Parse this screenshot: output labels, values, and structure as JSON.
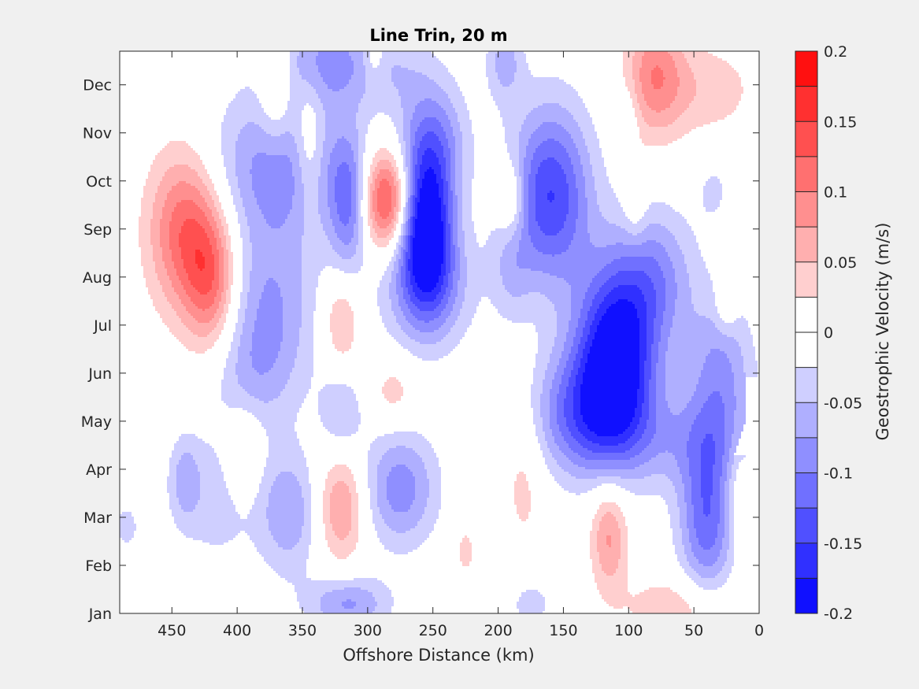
{
  "chart_data": {
    "type": "heatmap",
    "title": "Line Trin, 20 m",
    "xlabel": "Offshore Distance (km)",
    "ylabel": "",
    "xlim": [
      490,
      0
    ],
    "x_reversed": true,
    "xticks": [
      450,
      400,
      350,
      300,
      250,
      200,
      150,
      100,
      50,
      0
    ],
    "ylim": [
      1,
      12.7
    ],
    "yticks": [
      1,
      2,
      3,
      4,
      5,
      6,
      7,
      8,
      9,
      10,
      11,
      12
    ],
    "yticklabels": [
      "Jan",
      "Feb",
      "Mar",
      "Apr",
      "May",
      "Jun",
      "Jul",
      "Aug",
      "Sep",
      "Oct",
      "Nov",
      "Dec"
    ],
    "colorbar": {
      "label": "Geostrophic Velocity (m/s)",
      "min": -0.2,
      "max": 0.2,
      "levels": [
        -0.2,
        -0.175,
        -0.15,
        -0.125,
        -0.1,
        -0.075,
        -0.05,
        -0.025,
        0,
        0.025,
        0.05,
        0.075,
        0.1,
        0.125,
        0.15,
        0.175,
        0.2
      ],
      "ticks": [
        0.2,
        0.15,
        0.1,
        0.05,
        0,
        -0.05,
        -0.1,
        -0.15,
        -0.2
      ],
      "ticklabels": [
        "0.2",
        "0.15",
        "0.1",
        "0.05",
        "0",
        "-0.05",
        "-0.1",
        "-0.15",
        "-0.2"
      ],
      "colormap": "blue-white-red",
      "negative_color": "#0000ff",
      "positive_color": "#ff0000",
      "zero_color": "#ffffff"
    },
    "grid": false,
    "features": [
      {
        "x": 255,
        "y": 9.0,
        "sx": 14,
        "sy": 1.1,
        "v": -0.2
      },
      {
        "x": 250,
        "y": 10.8,
        "sx": 18,
        "sy": 0.9,
        "v": -0.09
      },
      {
        "x": 255,
        "y": 7.8,
        "sx": 25,
        "sy": 0.9,
        "v": -0.08
      },
      {
        "x": 285,
        "y": 9.6,
        "sx": 13,
        "sy": 0.75,
        "v": 0.16
      },
      {
        "x": 315,
        "y": 9.5,
        "sx": 10,
        "sy": 1.0,
        "v": -0.09
      },
      {
        "x": 330,
        "y": 12.5,
        "sx": 28,
        "sy": 0.7,
        "v": -0.08
      },
      {
        "x": 365,
        "y": 10.3,
        "sx": 40,
        "sy": 1.1,
        "v": -0.09
      },
      {
        "x": 375,
        "y": 7.3,
        "sx": 25,
        "sy": 1.3,
        "v": -0.075
      },
      {
        "x": 390,
        "y": 5.9,
        "sx": 22,
        "sy": 0.8,
        "v": -0.035
      },
      {
        "x": 440,
        "y": 9.0,
        "sx": 20,
        "sy": 1.2,
        "v": 0.12
      },
      {
        "x": 420,
        "y": 7.9,
        "sx": 14,
        "sy": 1.0,
        "v": 0.1
      },
      {
        "x": 345,
        "y": 10.8,
        "sx": 8,
        "sy": 1.0,
        "v": 0.06
      },
      {
        "x": 370,
        "y": 12.0,
        "sx": 9,
        "sy": 0.9,
        "v": 0.06
      },
      {
        "x": 160,
        "y": 9.7,
        "sx": 22,
        "sy": 1.3,
        "v": -0.15
      },
      {
        "x": 195,
        "y": 12.5,
        "sx": 10,
        "sy": 0.6,
        "v": -0.06
      },
      {
        "x": 190,
        "y": 9.6,
        "sx": 8,
        "sy": 0.6,
        "v": 0.07
      },
      {
        "x": 190,
        "y": 8.2,
        "sx": 11,
        "sy": 0.8,
        "v": -0.04
      },
      {
        "x": 110,
        "y": 6.4,
        "sx": 22,
        "sy": 1.3,
        "v": -0.2
      },
      {
        "x": 135,
        "y": 5.2,
        "sx": 30,
        "sy": 0.9,
        "v": -0.1
      },
      {
        "x": 80,
        "y": 8.0,
        "sx": 22,
        "sy": 1.0,
        "v": -0.08
      },
      {
        "x": 30,
        "y": 6.0,
        "sx": 18,
        "sy": 1.1,
        "v": -0.08
      },
      {
        "x": 60,
        "y": 4.6,
        "sx": 55,
        "sy": 0.7,
        "v": -0.05
      },
      {
        "x": 40,
        "y": 3.0,
        "sx": 15,
        "sy": 1.2,
        "v": -0.12
      },
      {
        "x": 80,
        "y": 12.2,
        "sx": 16,
        "sy": 0.9,
        "v": 0.09
      },
      {
        "x": 40,
        "y": 11.9,
        "sx": 28,
        "sy": 0.7,
        "v": 0.04
      },
      {
        "x": 115,
        "y": 2.6,
        "sx": 10,
        "sy": 0.8,
        "v": 0.08
      },
      {
        "x": 180,
        "y": 4.1,
        "sx": 12,
        "sy": 1.3,
        "v": 0.04
      },
      {
        "x": 95,
        "y": 9.7,
        "sx": 6,
        "sy": 0.7,
        "v": 0.04
      },
      {
        "x": 35,
        "y": 9.8,
        "sx": 10,
        "sy": 0.5,
        "v": -0.03
      },
      {
        "x": 100,
        "y": 11.2,
        "sx": 6,
        "sy": 0.6,
        "v": -0.03
      },
      {
        "x": 25,
        "y": 7.4,
        "sx": 6,
        "sy": 0.4,
        "v": 0.04
      },
      {
        "x": 15,
        "y": 3.7,
        "sx": 8,
        "sy": 0.9,
        "v": 0.04
      },
      {
        "x": 275,
        "y": 3.6,
        "sx": 20,
        "sy": 0.85,
        "v": -0.09
      },
      {
        "x": 320,
        "y": 3.2,
        "sx": 13,
        "sy": 0.8,
        "v": 0.08
      },
      {
        "x": 360,
        "y": 3.1,
        "sx": 16,
        "sy": 0.9,
        "v": -0.07
      },
      {
        "x": 415,
        "y": 3.4,
        "sx": 25,
        "sy": 1.0,
        "v": -0.04
      },
      {
        "x": 440,
        "y": 3.8,
        "sx": 8,
        "sy": 0.6,
        "v": -0.05
      },
      {
        "x": 485,
        "y": 2.8,
        "sx": 10,
        "sy": 0.5,
        "v": -0.03
      },
      {
        "x": 320,
        "y": 5.2,
        "sx": 12,
        "sy": 0.6,
        "v": -0.05
      },
      {
        "x": 320,
        "y": 7.1,
        "sx": 10,
        "sy": 0.7,
        "v": 0.06
      },
      {
        "x": 280,
        "y": 5.6,
        "sx": 13,
        "sy": 0.5,
        "v": 0.04
      },
      {
        "x": 315,
        "y": 1.2,
        "sx": 22,
        "sy": 0.4,
        "v": -0.08
      },
      {
        "x": 60,
        "y": 1.1,
        "sx": 30,
        "sy": 0.5,
        "v": 0.05
      },
      {
        "x": 175,
        "y": 1.2,
        "sx": 12,
        "sy": 0.4,
        "v": -0.04
      },
      {
        "x": 395,
        "y": 4.3,
        "sx": 10,
        "sy": 0.7,
        "v": 0.05
      },
      {
        "x": 275,
        "y": 12.3,
        "sx": 20,
        "sy": 0.6,
        "v": -0.03
      },
      {
        "x": 295,
        "y": 12.6,
        "sx": 6,
        "sy": 0.4,
        "v": 0.04
      },
      {
        "x": 225,
        "y": 2.3,
        "sx": 5,
        "sy": 0.35,
        "v": 0.04
      },
      {
        "x": 480,
        "y": 10.5,
        "sx": 3,
        "sy": 0.3,
        "v": -0.03
      }
    ]
  }
}
